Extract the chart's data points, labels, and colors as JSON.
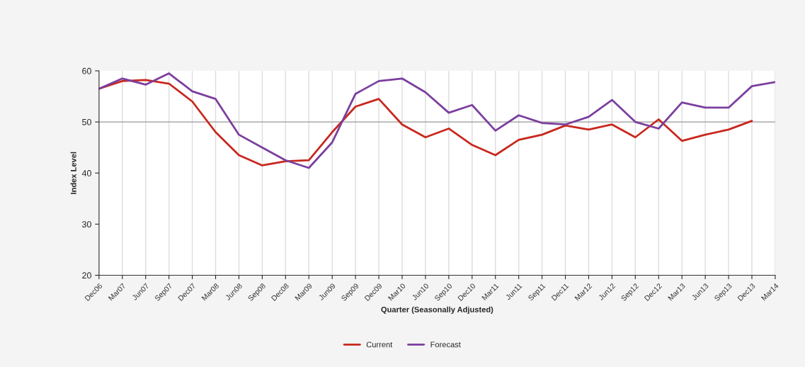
{
  "chart_data": {
    "type": "line",
    "xlabel": "Quarter (Seasonally Adjusted)",
    "ylabel": "Index Level",
    "categories": [
      "Dec06",
      "Mar07",
      "Jun07",
      "Sep07",
      "Dec07",
      "Mar08",
      "Jun08",
      "Sep08",
      "Dec08",
      "Mar09",
      "Jun09",
      "Sep09",
      "Dec09",
      "Mar10",
      "Jun10",
      "Sep10",
      "Dec10",
      "Mar11",
      "Jun11",
      "Sep11",
      "Dec11",
      "Mar12",
      "Jun12",
      "Sep12",
      "Dec12",
      "Mar13",
      "Jun13",
      "Sep13",
      "Dec13",
      "Mar14"
    ],
    "series": [
      {
        "name": "Current",
        "color": "#c8281e",
        "values": [
          56.5,
          58,
          58.2,
          57.5,
          54,
          48,
          43.5,
          41.5,
          42.3,
          42.5,
          48,
          53,
          54.5,
          49.5,
          47,
          48.7,
          45.5,
          43.5,
          46.5,
          47.5,
          49.3,
          48.5,
          49.5,
          47,
          50.5,
          46.3,
          47.5,
          48.5,
          50.2,
          null
        ]
      },
      {
        "name": "Forecast",
        "color": "#7b3f9e",
        "values": [
          56.5,
          58.5,
          57.3,
          59.5,
          56,
          54.5,
          47.5,
          45,
          42.5,
          41,
          46,
          55.5,
          58,
          58.5,
          55.8,
          51.8,
          53.3,
          48.3,
          51.3,
          49.8,
          49.5,
          51,
          54.3,
          50,
          48.7,
          53.8,
          52.8,
          52.8,
          57,
          57.8
        ]
      }
    ],
    "ylim": [
      20,
      60
    ],
    "yticks": [
      20,
      30,
      40,
      50,
      60
    ],
    "ref_lines": [
      {
        "axis": "y",
        "value": 50,
        "color": "#999999"
      }
    ],
    "grid": "x",
    "legend": "bottom",
    "marker": "none",
    "line_style": "solid"
  }
}
